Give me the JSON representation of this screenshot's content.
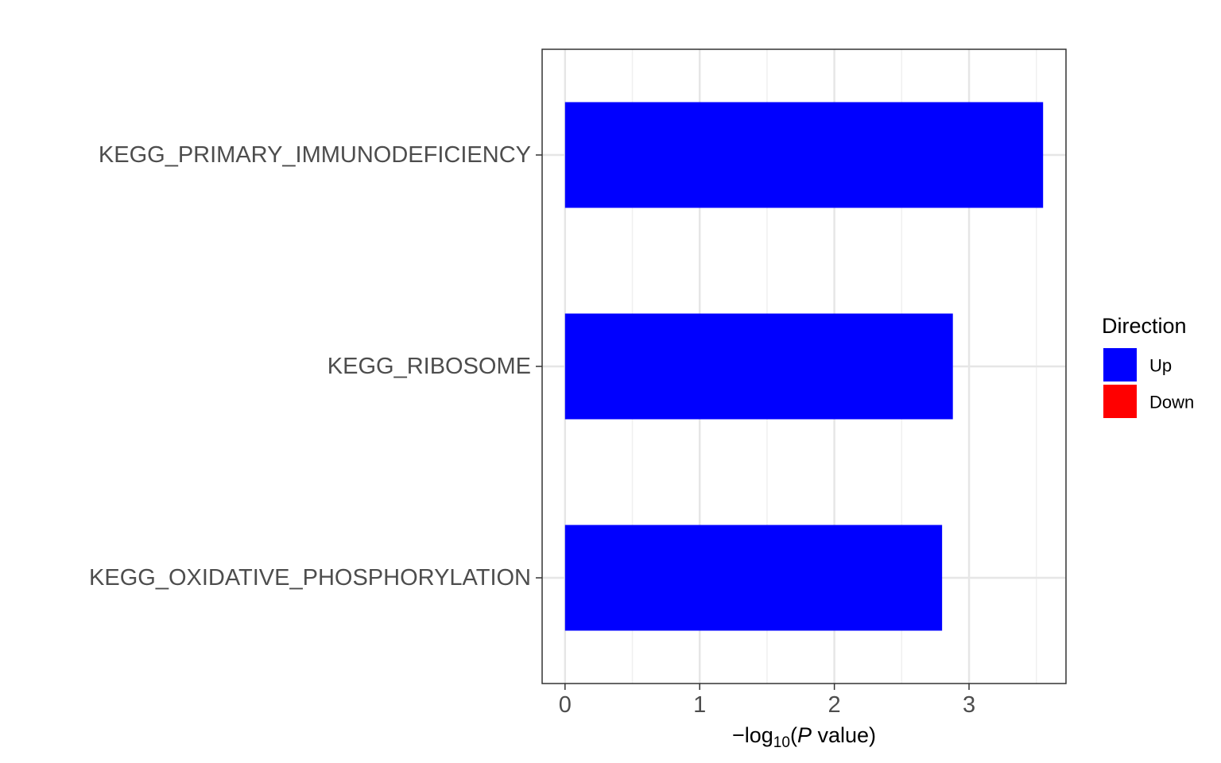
{
  "chart_data": {
    "type": "bar",
    "orientation": "horizontal",
    "categories": [
      "KEGG_PRIMARY_IMMUNODEFICIENCY",
      "KEGG_RIBOSOME",
      "KEGG_OXIDATIVE_PHOSPHORYLATION"
    ],
    "values": [
      3.55,
      2.88,
      2.8
    ],
    "directions": [
      "Up",
      "Up",
      "Up"
    ],
    "xlabel": {
      "prefix": "−log",
      "sub": "10",
      "open": "(",
      "italic": "P",
      "suffix": " value)"
    },
    "xlim": [
      -0.17,
      3.72
    ],
    "xticks": [
      "0",
      "1",
      "2",
      "3"
    ],
    "grid": true,
    "legend": {
      "title": "Direction",
      "placement": "right",
      "items": [
        {
          "label": "Up",
          "color": "#0000ff"
        },
        {
          "label": "Down",
          "color": "#ff0000"
        }
      ]
    }
  }
}
